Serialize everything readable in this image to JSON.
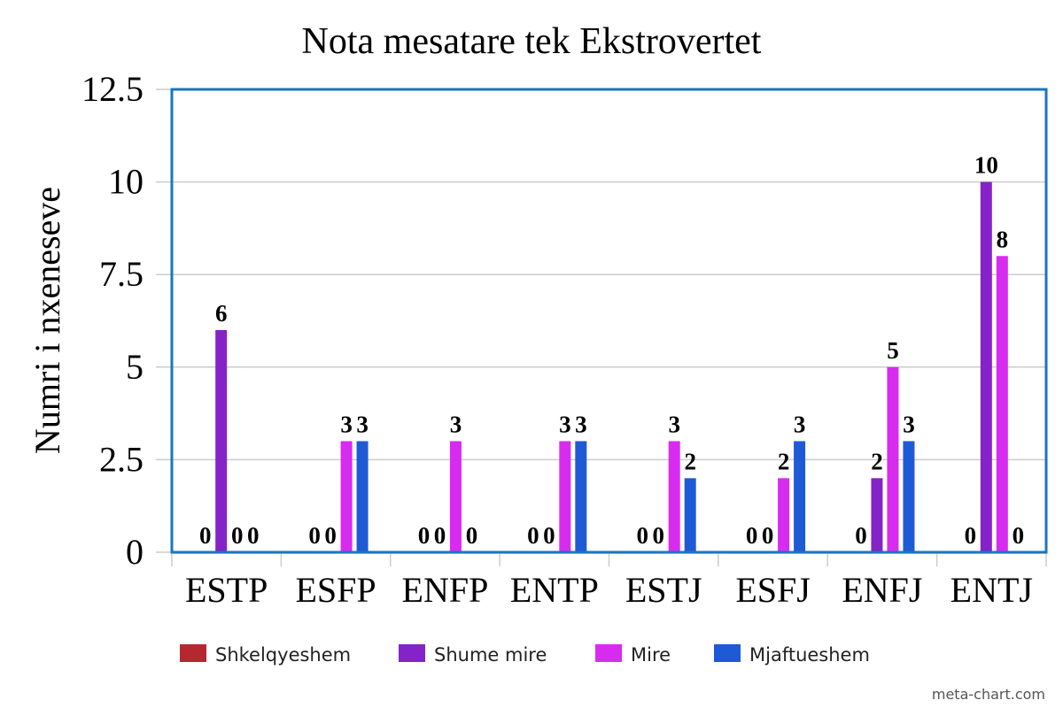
{
  "chart_data": {
    "type": "bar",
    "title": "Nota mesatare tek Ekstrovertet",
    "xlabel": "",
    "ylabel": "Numri i nxeneseve",
    "categories": [
      "ESTP",
      "ESFP",
      "ENFP",
      "ENTP",
      "ESTJ",
      "ESFJ",
      "ENFJ",
      "ENTJ"
    ],
    "series": [
      {
        "name": "Shkelqyeshem",
        "color": "#b5282f",
        "values": [
          0,
          0,
          0,
          0,
          0,
          0,
          0,
          0
        ]
      },
      {
        "name": "Shume mire",
        "color": "#8423c7",
        "values": [
          6,
          0,
          0,
          0,
          0,
          0,
          2,
          10
        ]
      },
      {
        "name": "Mire",
        "color": "#d82bf0",
        "values": [
          0,
          3,
          3,
          3,
          3,
          2,
          5,
          8
        ]
      },
      {
        "name": "Mjaftueshem",
        "color": "#1f5ad6",
        "values": [
          0,
          3,
          0,
          3,
          2,
          3,
          3,
          0
        ]
      }
    ],
    "ylim": [
      0,
      12.5
    ],
    "yticks": [
      "0",
      "2.5",
      "5",
      "7.5",
      "10",
      "12.5"
    ],
    "grid": true,
    "legend_position": "bottom",
    "frame_color": "#1b75bb"
  },
  "watermark": "meta-chart.com"
}
